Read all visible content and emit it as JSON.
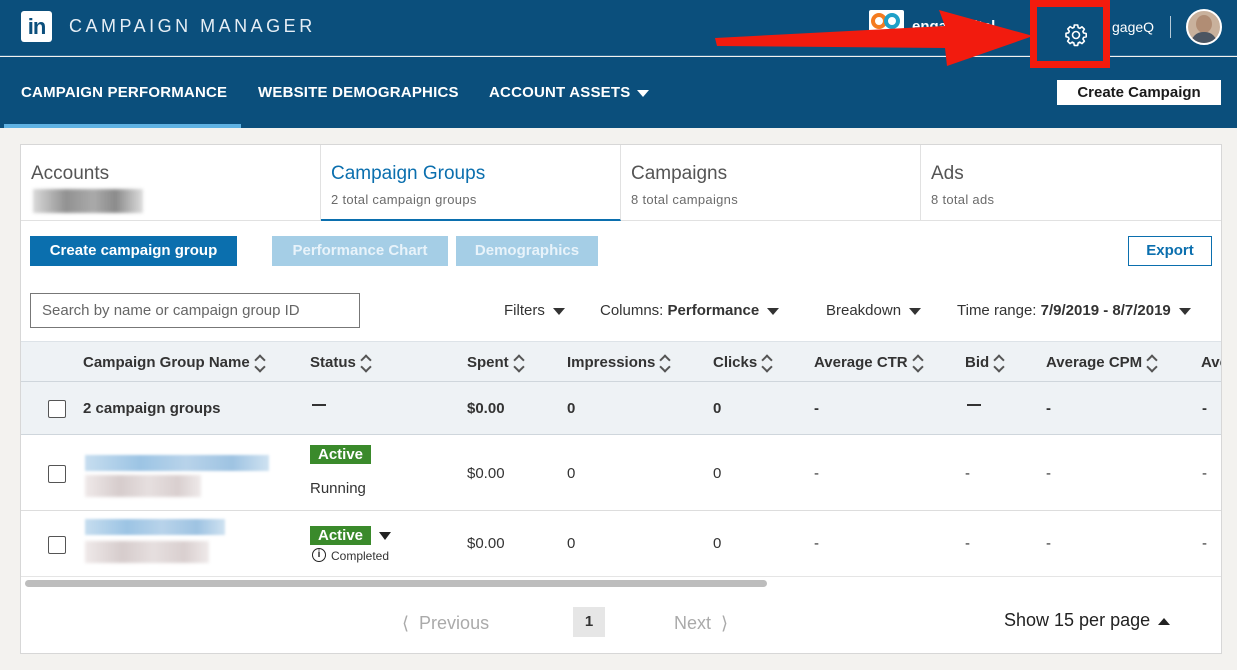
{
  "header": {
    "logo": "in",
    "app_title": "CAMPAIGN MANAGER",
    "account_name_left": "enga    digital",
    "account_name_right": "gageQ",
    "accent_color": "#0b4f7c",
    "highlight_color": "#f21b0e"
  },
  "nav": {
    "items": [
      "CAMPAIGN PERFORMANCE",
      "WEBSITE DEMOGRAPHICS",
      "ACCOUNT ASSETS"
    ],
    "create_campaign": "Create Campaign"
  },
  "tabs": [
    {
      "title": "Accounts",
      "sub": ""
    },
    {
      "title": "Campaign Groups",
      "sub": "2 total campaign groups"
    },
    {
      "title": "Campaigns",
      "sub": "8 total campaigns"
    },
    {
      "title": "Ads",
      "sub": "8 total ads"
    }
  ],
  "toolbar": {
    "create_group": "Create campaign group",
    "performance_chart": "Performance Chart",
    "demographics": "Demographics",
    "export": "Export",
    "search_placeholder": "Search by name or campaign group ID",
    "filters": "Filters",
    "columns_label": "Columns:",
    "columns_value": "Performance",
    "breakdown": "Breakdown",
    "time_range_label": "Time range:",
    "time_range_value": "7/9/2019 - 8/7/2019"
  },
  "table": {
    "headers": [
      "Campaign Group Name",
      "Status",
      "Spent",
      "Impressions",
      "Clicks",
      "Average CTR",
      "Bid",
      "Average CPM",
      "Ave"
    ],
    "summary": {
      "name": "2 campaign groups",
      "spent": "$0.00",
      "impressions": "0",
      "clicks": "0",
      "ctr": "-",
      "cpm": "-",
      "last": "-"
    },
    "rows": [
      {
        "badge": "Active",
        "status_detail": "Running",
        "spent": "$0.00",
        "impressions": "0",
        "clicks": "0",
        "ctr": "-",
        "bid": "-",
        "cpm": "-",
        "last": "-"
      },
      {
        "badge": "Active",
        "status_detail": "Completed",
        "spent": "$0.00",
        "impressions": "0",
        "clicks": "0",
        "ctr": "-",
        "bid": "-",
        "cpm": "-",
        "last": "-"
      }
    ]
  },
  "pagination": {
    "previous": "Previous",
    "page": "1",
    "next": "Next",
    "per_page": "Show 15 per page"
  }
}
